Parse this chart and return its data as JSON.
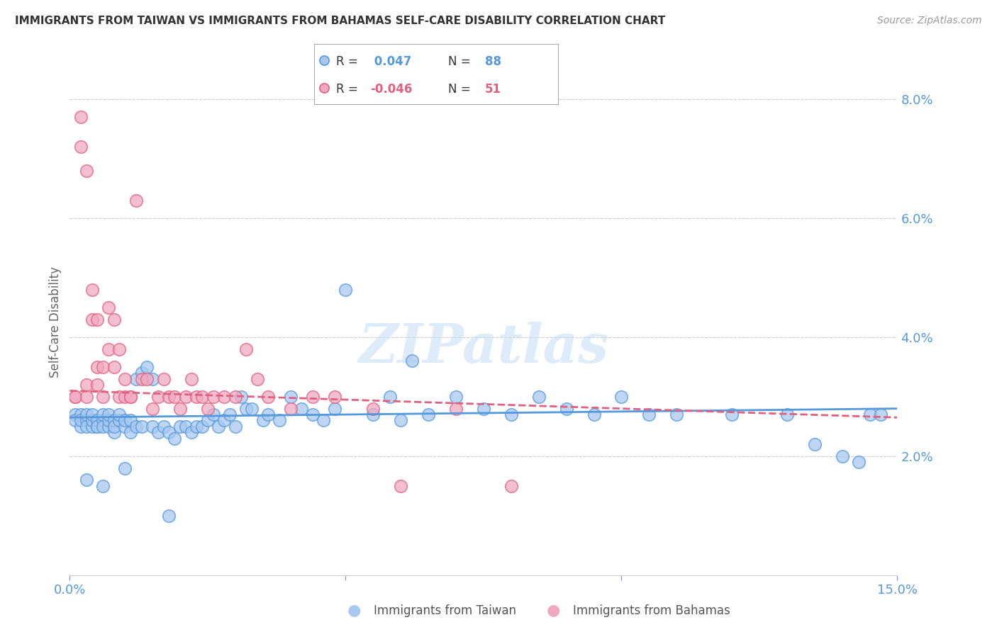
{
  "title": "IMMIGRANTS FROM TAIWAN VS IMMIGRANTS FROM BAHAMAS SELF-CARE DISABILITY CORRELATION CHART",
  "source": "Source: ZipAtlas.com",
  "ylabel": "Self-Care Disability",
  "watermark": "ZIPatlas",
  "xlim": [
    0.0,
    0.15
  ],
  "ylim": [
    0.0,
    0.085
  ],
  "xtick_positions": [
    0.0,
    0.05,
    0.1,
    0.15
  ],
  "xticklabels": [
    "0.0%",
    "",
    "",
    "15.0%"
  ],
  "ytick_positions": [
    0.02,
    0.04,
    0.06,
    0.08
  ],
  "ytick_right_labels": [
    "2.0%",
    "4.0%",
    "6.0%",
    "8.0%"
  ],
  "taiwan_color": "#a8c8f0",
  "bahamas_color": "#f0a8c0",
  "taiwan_line_color": "#5599dd",
  "bahamas_line_color": "#e06080",
  "taiwan_R": 0.047,
  "taiwan_N": 88,
  "bahamas_R": -0.046,
  "bahamas_N": 51,
  "taiwan_x": [
    0.001,
    0.001,
    0.002,
    0.002,
    0.002,
    0.003,
    0.003,
    0.003,
    0.004,
    0.004,
    0.004,
    0.005,
    0.005,
    0.005,
    0.006,
    0.006,
    0.006,
    0.007,
    0.007,
    0.007,
    0.008,
    0.008,
    0.008,
    0.009,
    0.009,
    0.01,
    0.01,
    0.011,
    0.011,
    0.012,
    0.012,
    0.013,
    0.013,
    0.014,
    0.015,
    0.015,
    0.016,
    0.017,
    0.018,
    0.019,
    0.02,
    0.021,
    0.022,
    0.023,
    0.024,
    0.025,
    0.026,
    0.027,
    0.028,
    0.029,
    0.03,
    0.031,
    0.032,
    0.033,
    0.035,
    0.036,
    0.038,
    0.04,
    0.042,
    0.044,
    0.046,
    0.048,
    0.05,
    0.055,
    0.058,
    0.06,
    0.062,
    0.065,
    0.07,
    0.075,
    0.08,
    0.085,
    0.09,
    0.095,
    0.1,
    0.105,
    0.11,
    0.12,
    0.13,
    0.135,
    0.14,
    0.143,
    0.145,
    0.147,
    0.003,
    0.006,
    0.01,
    0.018
  ],
  "taiwan_y": [
    0.027,
    0.026,
    0.025,
    0.027,
    0.026,
    0.026,
    0.025,
    0.027,
    0.025,
    0.026,
    0.027,
    0.025,
    0.026,
    0.025,
    0.026,
    0.025,
    0.027,
    0.025,
    0.026,
    0.027,
    0.024,
    0.026,
    0.025,
    0.026,
    0.027,
    0.025,
    0.026,
    0.024,
    0.026,
    0.025,
    0.033,
    0.034,
    0.025,
    0.035,
    0.033,
    0.025,
    0.024,
    0.025,
    0.024,
    0.023,
    0.025,
    0.025,
    0.024,
    0.025,
    0.025,
    0.026,
    0.027,
    0.025,
    0.026,
    0.027,
    0.025,
    0.03,
    0.028,
    0.028,
    0.026,
    0.027,
    0.026,
    0.03,
    0.028,
    0.027,
    0.026,
    0.028,
    0.048,
    0.027,
    0.03,
    0.026,
    0.036,
    0.027,
    0.03,
    0.028,
    0.027,
    0.03,
    0.028,
    0.027,
    0.03,
    0.027,
    0.027,
    0.027,
    0.027,
    0.022,
    0.02,
    0.019,
    0.027,
    0.027,
    0.016,
    0.015,
    0.018,
    0.01
  ],
  "bahamas_x": [
    0.001,
    0.001,
    0.002,
    0.002,
    0.003,
    0.003,
    0.003,
    0.004,
    0.004,
    0.005,
    0.005,
    0.005,
    0.006,
    0.006,
    0.007,
    0.007,
    0.008,
    0.008,
    0.009,
    0.009,
    0.01,
    0.01,
    0.011,
    0.011,
    0.012,
    0.013,
    0.014,
    0.015,
    0.016,
    0.017,
    0.018,
    0.019,
    0.02,
    0.021,
    0.022,
    0.023,
    0.024,
    0.025,
    0.026,
    0.028,
    0.03,
    0.032,
    0.034,
    0.036,
    0.04,
    0.044,
    0.048,
    0.055,
    0.06,
    0.07,
    0.08
  ],
  "bahamas_y": [
    0.03,
    0.03,
    0.072,
    0.077,
    0.032,
    0.068,
    0.03,
    0.048,
    0.043,
    0.032,
    0.035,
    0.043,
    0.035,
    0.03,
    0.045,
    0.038,
    0.035,
    0.043,
    0.038,
    0.03,
    0.03,
    0.033,
    0.03,
    0.03,
    0.063,
    0.033,
    0.033,
    0.028,
    0.03,
    0.033,
    0.03,
    0.03,
    0.028,
    0.03,
    0.033,
    0.03,
    0.03,
    0.028,
    0.03,
    0.03,
    0.03,
    0.038,
    0.033,
    0.03,
    0.028,
    0.03,
    0.03,
    0.028,
    0.015,
    0.028,
    0.015
  ],
  "background_color": "#ffffff",
  "grid_color": "#cccccc",
  "title_color": "#333333",
  "tick_color": "#5599dd"
}
